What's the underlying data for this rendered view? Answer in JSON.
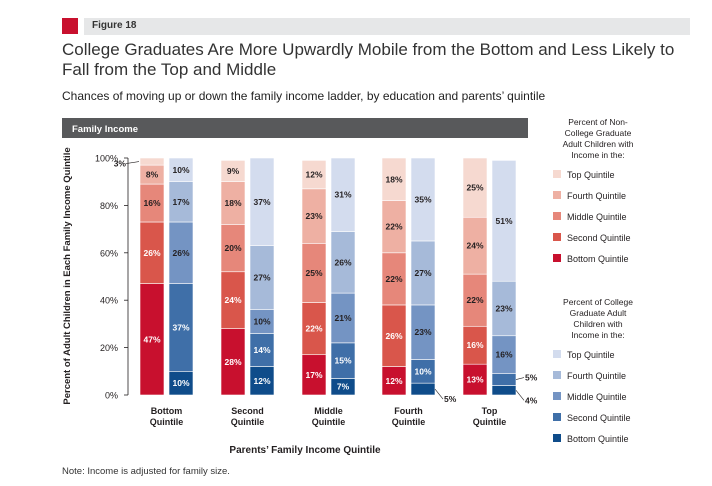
{
  "figure_label": "Figure 18",
  "title": "College Graduates Are More Upwardly Mobile from the Bottom and Less Likely to Fall from the Top and Middle",
  "subtitle": "Chances of moving up or down the family income ladder, by education and parents’ quintile",
  "note": "Note: Income is adjusted for family size.",
  "chart_data": {
    "type": "bar",
    "stacked": true,
    "header": "Family Income",
    "ylabel": "Percent of Adult Children in Each Family Income Quintile",
    "xlabel": "Parents’ Family Income Quintile",
    "ylim": [
      0,
      100
    ],
    "yticks": [
      "0%",
      "20%",
      "40%",
      "60%",
      "80%",
      "100%"
    ],
    "categories": [
      "Bottom Quintile",
      "Second Quintile",
      "Middle Quintile",
      "Fourth Quintile",
      "Top Quintile"
    ],
    "category_lines": [
      [
        "Bottom",
        "Quintile"
      ],
      [
        "Second",
        "Quintile"
      ],
      [
        "Middle",
        "Quintile"
      ],
      [
        "Fourth",
        "Quintile"
      ],
      [
        "Top",
        "Quintile"
      ]
    ],
    "segment_order": [
      "Bottom Quintile",
      "Second Quintile",
      "Middle Quintile",
      "Fourth Quintile",
      "Top Quintile"
    ],
    "groups": [
      {
        "name": "Non-College Graduate",
        "legend_title": "Percent of Non-College Graduate Adult Children with Income in the:",
        "legend_title_lines": [
          "Percent of Non-",
          "College Graduate",
          "Adult Children with",
          "Income in the:"
        ],
        "colors": [
          "#c8102e",
          "#d9564b",
          "#e6877a",
          "#eeb0a3",
          "#f6d9d0"
        ],
        "values": [
          [
            47,
            26,
            16,
            8,
            3
          ],
          [
            28,
            24,
            20,
            18,
            9
          ],
          [
            17,
            22,
            25,
            23,
            12
          ],
          [
            12,
            26,
            22,
            22,
            18
          ],
          [
            13,
            16,
            22,
            24,
            25
          ]
        ],
        "labels": [
          [
            "47%",
            "26%",
            "16%",
            "8%",
            "3%"
          ],
          [
            "28%",
            "24%",
            "20%",
            "18%",
            "9%"
          ],
          [
            "17%",
            "22%",
            "25%",
            "23%",
            "12%"
          ],
          [
            "12%",
            "26%",
            "22%",
            "22%",
            "18%"
          ],
          [
            "13%",
            "16%",
            "22%",
            "24%",
            "25%"
          ]
        ]
      },
      {
        "name": "College Graduate",
        "legend_title": "Percent of College Graduate Adult Children with Income in the:",
        "legend_title_lines": [
          "Percent of College",
          "Graduate Adult",
          "Children with",
          "Income in the:"
        ],
        "colors": [
          "#0f4c8a",
          "#3f6fa8",
          "#7494c3",
          "#a6bad9",
          "#d3dcee"
        ],
        "values": [
          [
            10,
            37,
            26,
            17,
            10
          ],
          [
            12,
            14,
            10,
            27,
            37
          ],
          [
            7,
            15,
            21,
            26,
            31
          ],
          [
            5,
            10,
            23,
            27,
            35
          ],
          [
            4,
            5,
            16,
            23,
            51
          ]
        ],
        "labels": [
          [
            "10%",
            "37%",
            "26%",
            "17%",
            "10%"
          ],
          [
            "12%",
            "14%",
            "10%",
            "27%",
            "37%"
          ],
          [
            "7%",
            "15%",
            "21%",
            "26%",
            "31%"
          ],
          [
            "5%",
            "10%",
            "23%",
            "27%",
            "35%"
          ],
          [
            "4%",
            "5%",
            "16%",
            "23%",
            "51%"
          ]
        ]
      }
    ],
    "legend_items": [
      "Top Quintile",
      "Fourth Quintile",
      "Middle Quintile",
      "Second Quintile",
      "Bottom Quintile"
    ]
  }
}
